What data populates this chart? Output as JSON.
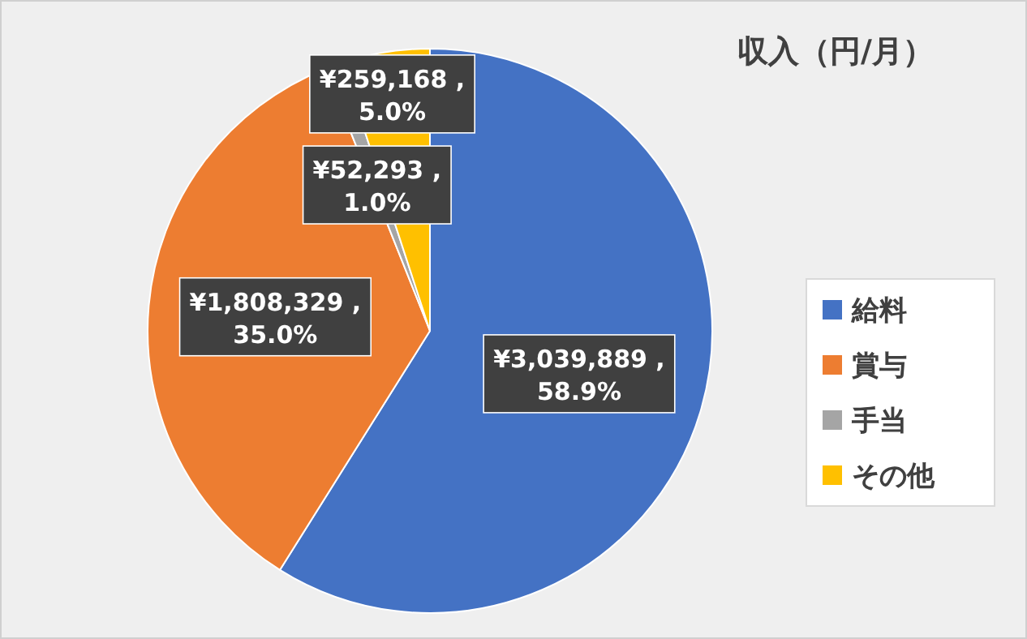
{
  "chart_data": {
    "type": "pie",
    "title": "収入（円/月）",
    "categories": [
      "給料",
      "賞与",
      "手当",
      "その他"
    ],
    "values": [
      3039889,
      1808329,
      52293,
      259168
    ],
    "colors": [
      "#4472c4",
      "#ed7d31",
      "#a5a5a5",
      "#ffc000"
    ],
    "value_labels": [
      "¥3,039,889 , 58.9%",
      "¥1,808,329 , 35.0%",
      "¥52,293 , 1.0%",
      "¥259,168 , 5.0%"
    ],
    "legend": "right"
  }
}
